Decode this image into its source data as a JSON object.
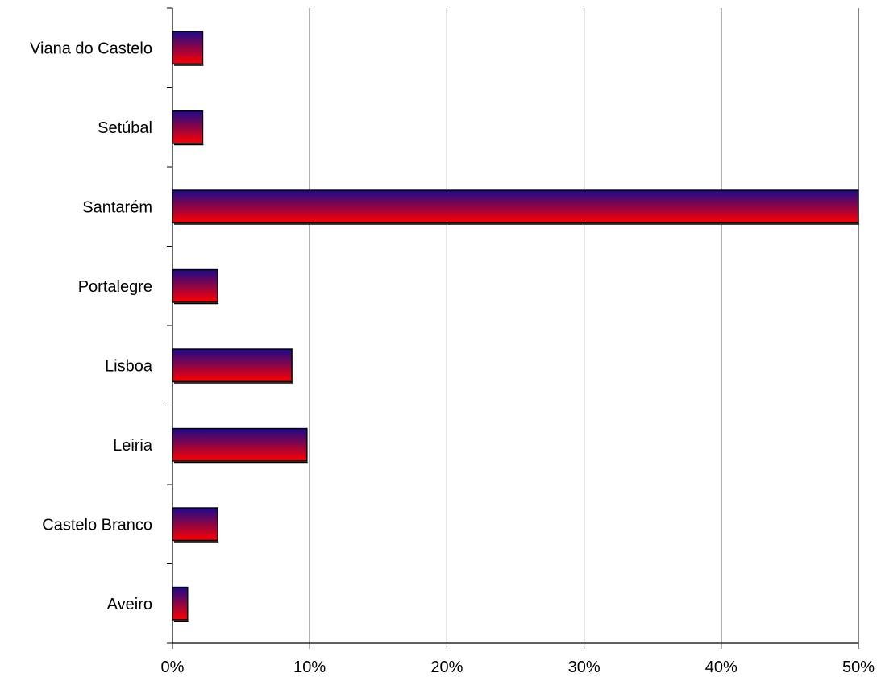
{
  "chart_data": {
    "type": "bar",
    "orientation": "horizontal",
    "categories": [
      "Viana do Castelo",
      "Setúbal",
      "Santarém",
      "Portalegre",
      "Lisboa",
      "Leiria",
      "Castelo Branco",
      "Aveiro"
    ],
    "values": [
      2.2,
      2.2,
      50.3,
      3.3,
      8.7,
      9.8,
      3.3,
      1.1
    ],
    "value_unit": "%",
    "xlim": [
      0,
      50
    ],
    "x_ticks": [
      "0%",
      "10%",
      "20%",
      "30%",
      "40%",
      "50%"
    ],
    "grid": "vertical",
    "legend": "none",
    "bar_gradient": [
      "#1a0a8c",
      "#ff0000"
    ],
    "bar_outline": "#000000"
  }
}
